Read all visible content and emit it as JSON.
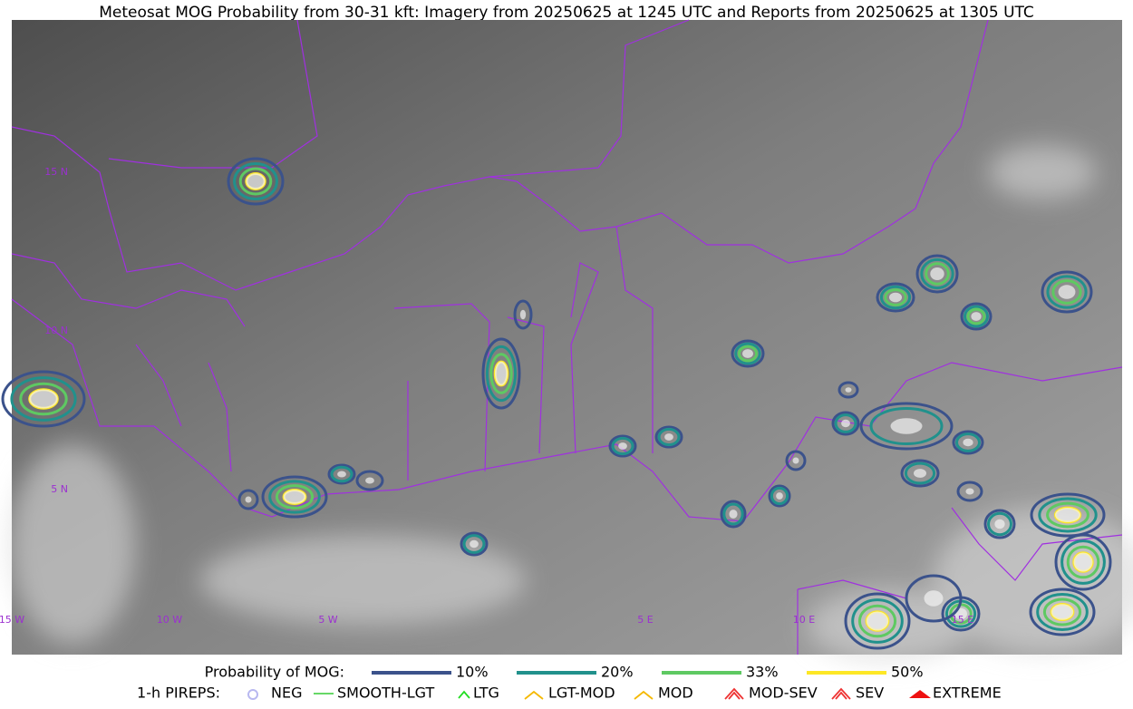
{
  "title": "Meteosat MOG Probability from 30-31 kft: Imagery from 20250625 at 1245 UTC and Reports from 20250625 at 1305 UTC",
  "map": {
    "lat_labels": [
      "15 N",
      "10 N",
      "5 N"
    ],
    "lon_labels": [
      "15 W",
      "10 W",
      "5 W",
      "5 E",
      "10 E",
      "15 E"
    ],
    "grid_color": "#9b30d0"
  },
  "legend": {
    "probability": {
      "label": "Probability of MOG:",
      "items": [
        {
          "label": "10%",
          "color": "#3b528b"
        },
        {
          "label": "20%",
          "color": "#21918c"
        },
        {
          "label": "33%",
          "color": "#5ec962"
        },
        {
          "label": "50%",
          "color": "#fde725"
        }
      ]
    },
    "pireps": {
      "label": "1-h PIREPS:",
      "items": [
        "NEG",
        "SMOOTH-LGT",
        "LTG",
        "LGT-MOD",
        "MOD",
        "MOD-SEV",
        "SEV",
        "EXTREME"
      ]
    }
  }
}
